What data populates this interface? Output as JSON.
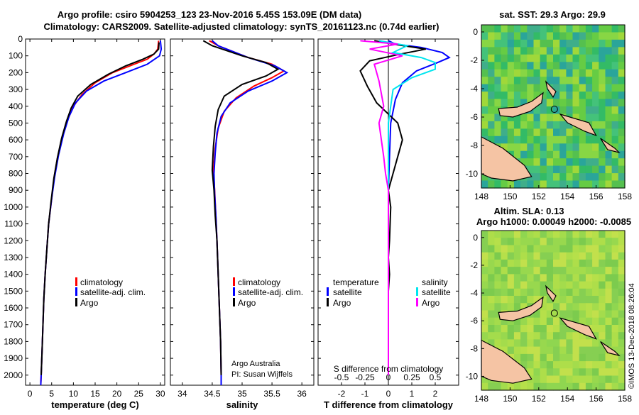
{
  "title_line1": "Argo profile: csiro 5904253_123 23-Nov-2016 5.45S 153.09E (DM data)",
  "title_line2": "Climatology: CARS2009. Satellite-adjusted climatology: synTS_20161123.nc (0.74d earlier)",
  "credit": "Argo Australia",
  "pi": "PI: Susan Wijffels",
  "imos": "©IMOS 13-Dec-2018 08:26:04",
  "colors": {
    "climatology": "#ff0000",
    "satellite": "#0000ff",
    "argo": "#000000",
    "sal_sat": "#00e5ee",
    "sal_argo": "#ff00ff"
  },
  "chart_data": [
    {
      "type": "line",
      "name": "temperature",
      "xlabel": "temperature (deg C)",
      "xlim": [
        -1,
        31
      ],
      "xticks": [
        0,
        5,
        10,
        15,
        20,
        25,
        30
      ],
      "xtick_labels": [
        "0",
        "5",
        "10",
        "15",
        "20",
        "25",
        "30"
      ],
      "ylim": [
        0,
        2060
      ],
      "yticks": [
        0,
        100,
        200,
        300,
        400,
        500,
        600,
        700,
        800,
        900,
        1000,
        1100,
        1200,
        1300,
        1400,
        1500,
        1600,
        1700,
        1800,
        1900,
        2000
      ],
      "ytick_labels": [
        "0",
        "100",
        "200",
        "300",
        "400",
        "500",
        "600",
        "700",
        "800",
        "900",
        "1000",
        "1100",
        "1200",
        "1300",
        "1400",
        "1500",
        "1600",
        "1700",
        "1800",
        "1900",
        "2000"
      ],
      "legend": [
        "climatology",
        "satellite-adj. clim.",
        "Argo"
      ],
      "series": [
        {
          "name": "climatology",
          "points": [
            [
              29.6,
              10
            ],
            [
              29.4,
              60
            ],
            [
              28.5,
              90
            ],
            [
              27,
              120
            ],
            [
              24,
              150
            ],
            [
              19,
              200
            ],
            [
              15,
              260
            ],
            [
              12,
              330
            ],
            [
              10,
              400
            ],
            [
              8.7,
              480
            ],
            [
              7.5,
              580
            ],
            [
              6.4,
              700
            ],
            [
              5.6,
              820
            ],
            [
              5,
              950
            ],
            [
              4.3,
              1100
            ],
            [
              3.9,
              1250
            ],
            [
              3.5,
              1400
            ],
            [
              3.2,
              1550
            ],
            [
              3,
              1700
            ],
            [
              2.8,
              1850
            ],
            [
              2.6,
              2000
            ],
            [
              2.5,
              2060
            ]
          ]
        },
        {
          "name": "satellite-adj. clim.",
          "points": [
            [
              30,
              10
            ],
            [
              30.2,
              60
            ],
            [
              29.8,
              100
            ],
            [
              27,
              150
            ],
            [
              22,
              200
            ],
            [
              17,
              250
            ],
            [
              13,
              310
            ],
            [
              10.5,
              380
            ],
            [
              9,
              460
            ],
            [
              7.8,
              560
            ],
            [
              6.6,
              690
            ],
            [
              5.7,
              820
            ],
            [
              5,
              950
            ],
            [
              4.3,
              1100
            ],
            [
              3.9,
              1250
            ],
            [
              3.5,
              1400
            ],
            [
              3.2,
              1550
            ],
            [
              3,
              1700
            ],
            [
              2.8,
              1850
            ],
            [
              2.6,
              2000
            ],
            [
              2.5,
              2060
            ]
          ]
        },
        {
          "name": "Argo",
          "points": [
            [
              29.7,
              20
            ],
            [
              29.6,
              60
            ],
            [
              28.5,
              90
            ],
            [
              26,
              120
            ],
            [
              22,
              160
            ],
            [
              18,
              210
            ],
            [
              14,
              270
            ],
            [
              11,
              340
            ],
            [
              9.5,
              410
            ],
            [
              8.4,
              490
            ],
            [
              7.3,
              590
            ],
            [
              6.3,
              710
            ],
            [
              5.5,
              830
            ],
            [
              4.9,
              960
            ],
            [
              4.3,
              1100
            ],
            [
              3.9,
              1250
            ],
            [
              3.5,
              1400
            ],
            [
              3.2,
              1550
            ],
            [
              3,
              1700
            ],
            [
              2.8,
              1850
            ],
            [
              2.6,
              2000
            ]
          ]
        }
      ]
    },
    {
      "type": "line",
      "name": "salinity",
      "xlabel": "salinity",
      "xlim": [
        33.8,
        36.2
      ],
      "xticks": [
        34,
        34.5,
        35,
        35.5,
        36
      ],
      "xtick_labels": [
        "34",
        "34.5",
        "35",
        "35.5",
        "36"
      ],
      "ylim": [
        0,
        2060
      ],
      "legend": [
        "climatology",
        "satellite-adj. clim.",
        "Argo"
      ],
      "series": [
        {
          "name": "climatology",
          "points": [
            [
              34.45,
              10
            ],
            [
              34.6,
              40
            ],
            [
              35.1,
              110
            ],
            [
              35.5,
              150
            ],
            [
              35.7,
              190
            ],
            [
              35.5,
              230
            ],
            [
              35.2,
              280
            ],
            [
              34.9,
              350
            ],
            [
              34.7,
              430
            ],
            [
              34.6,
              530
            ],
            [
              34.55,
              650
            ],
            [
              34.52,
              780
            ],
            [
              34.54,
              900
            ],
            [
              34.56,
              1050
            ],
            [
              34.58,
              1200
            ],
            [
              34.6,
              1400
            ],
            [
              34.62,
              1600
            ],
            [
              34.64,
              1800
            ],
            [
              34.65,
              2000
            ],
            [
              34.65,
              2060
            ]
          ]
        },
        {
          "name": "satellite-adj. clim.",
          "points": [
            [
              34.5,
              10
            ],
            [
              34.6,
              40
            ],
            [
              35.1,
              110
            ],
            [
              35.55,
              160
            ],
            [
              35.75,
              200
            ],
            [
              35.5,
              250
            ],
            [
              35.1,
              310
            ],
            [
              34.8,
              380
            ],
            [
              34.65,
              460
            ],
            [
              34.58,
              560
            ],
            [
              34.55,
              680
            ],
            [
              34.53,
              800
            ],
            [
              34.54,
              920
            ],
            [
              34.56,
              1050
            ],
            [
              34.58,
              1200
            ],
            [
              34.6,
              1400
            ],
            [
              34.62,
              1600
            ],
            [
              34.64,
              1800
            ],
            [
              34.65,
              2000
            ],
            [
              34.65,
              2060
            ]
          ]
        },
        {
          "name": "Argo",
          "points": [
            [
              34.35,
              10
            ],
            [
              34.5,
              40
            ],
            [
              35.0,
              100
            ],
            [
              35.4,
              140
            ],
            [
              35.6,
              180
            ],
            [
              35.4,
              220
            ],
            [
              35.0,
              270
            ],
            [
              34.7,
              340
            ],
            [
              34.6,
              420
            ],
            [
              34.55,
              520
            ],
            [
              34.52,
              640
            ],
            [
              34.5,
              780
            ],
            [
              34.53,
              900
            ],
            [
              34.55,
              1050
            ],
            [
              34.58,
              1200
            ],
            [
              34.6,
              1400
            ],
            [
              34.62,
              1600
            ],
            [
              34.64,
              1800
            ],
            [
              34.65,
              2000
            ]
          ]
        }
      ]
    },
    {
      "type": "line",
      "name": "difference",
      "xlabel": "T difference from climatology",
      "xlabel_top": "S difference from climatology",
      "xlim": [
        -3,
        3
      ],
      "xticks": [
        -2,
        -1,
        0,
        1,
        2
      ],
      "xtick_labels": [
        "-2",
        "-1",
        "0",
        "1",
        "2"
      ],
      "s_ticks": [
        -0.5,
        -0.25,
        0,
        0.25,
        0.5
      ],
      "s_tick_labels": [
        "-0.5",
        "-0.25",
        "0",
        "0.25",
        "0.5"
      ],
      "ylim": [
        0,
        2060
      ],
      "legend_left_title": "temperature",
      "legend_left": [
        "satellite",
        "Argo"
      ],
      "legend_right_title": "salinity",
      "legend_right": [
        "satellite",
        "Argo"
      ],
      "series": [
        {
          "name": "T satellite",
          "points": [
            [
              0,
              10
            ],
            [
              0.3,
              30
            ],
            [
              1.4,
              50
            ],
            [
              2.3,
              80
            ],
            [
              2.6,
              110
            ],
            [
              2.1,
              140
            ],
            [
              1.2,
              190
            ],
            [
              0.6,
              260
            ],
            [
              0.3,
              360
            ],
            [
              0.1,
              500
            ],
            [
              0.05,
              700
            ],
            [
              0,
              900
            ],
            [
              0,
              1200
            ],
            [
              0,
              1500
            ],
            [
              0,
              2000
            ]
          ]
        },
        {
          "name": "T Argo",
          "points": [
            [
              -0.6,
              10
            ],
            [
              0.2,
              30
            ],
            [
              1.6,
              60
            ],
            [
              0.5,
              90
            ],
            [
              -0.8,
              130
            ],
            [
              -1.2,
              190
            ],
            [
              -0.9,
              280
            ],
            [
              -0.5,
              380
            ],
            [
              0.4,
              500
            ],
            [
              0.6,
              600
            ],
            [
              0.4,
              700
            ],
            [
              0.2,
              800
            ],
            [
              0,
              900
            ],
            [
              0.1,
              1000
            ],
            [
              0.05,
              1200
            ],
            [
              0,
              1300
            ],
            [
              0.05,
              1400
            ],
            [
              0,
              1500
            ],
            [
              0,
              2000
            ]
          ]
        },
        {
          "name": "S satellite",
          "points": [
            [
              -0.1,
              10
            ],
            [
              0.2,
              40
            ],
            [
              0.05,
              80
            ],
            [
              0.35,
              110
            ],
            [
              0.5,
              140
            ],
            [
              0.5,
              180
            ],
            [
              0.25,
              230
            ],
            [
              0.05,
              300
            ],
            [
              0,
              500
            ],
            [
              0,
              800
            ],
            [
              0,
              1100
            ],
            [
              0,
              1500
            ],
            [
              0,
              2000
            ]
          ]
        },
        {
          "name": "S Argo",
          "points": [
            [
              -0.3,
              10
            ],
            [
              0.1,
              30
            ],
            [
              -0.2,
              60
            ],
            [
              0.15,
              100
            ],
            [
              -0.15,
              150
            ],
            [
              -0.1,
              250
            ],
            [
              -0.05,
              400
            ],
            [
              -0.1,
              500
            ],
            [
              -0.05,
              700
            ],
            [
              -0.03,
              800
            ],
            [
              0,
              900
            ],
            [
              0,
              1200
            ],
            [
              0,
              1500
            ],
            [
              0,
              2000
            ]
          ]
        }
      ]
    },
    {
      "type": "heatmap",
      "name": "sst-map",
      "title": "sat. SST: 29.3 Argo: 29.9",
      "xlim": [
        148,
        158
      ],
      "ylim": [
        -11,
        0.5
      ],
      "xticks": [
        148,
        150,
        152,
        154,
        156,
        158
      ],
      "xtick_labels": [
        "148",
        "150",
        "152",
        "154",
        "156",
        "158"
      ],
      "yticks": [
        0,
        -2,
        -4,
        -6,
        -8,
        -10
      ],
      "ytick_labels": [
        "0",
        "-2",
        "-4",
        "-6",
        "-8",
        "-10"
      ],
      "marker": [
        153.09,
        -5.45
      ]
    },
    {
      "type": "heatmap",
      "name": "sla-map",
      "title_line1": "Altim. SLA: 0.13",
      "title_line2": "Argo h1000: 0.00049 h2000: -0.0085",
      "xlim": [
        148,
        158
      ],
      "ylim": [
        -11,
        0.5
      ],
      "xticks": [
        148,
        150,
        152,
        154,
        156,
        158
      ],
      "xtick_labels": [
        "148",
        "150",
        "152",
        "154",
        "156",
        "158"
      ],
      "yticks": [
        0,
        -2,
        -4,
        -6,
        -8,
        -10
      ],
      "ytick_labels": [
        "0",
        "-2",
        "-4",
        "-6",
        "-8",
        "-10"
      ],
      "marker": [
        153.09,
        -5.45
      ]
    }
  ]
}
